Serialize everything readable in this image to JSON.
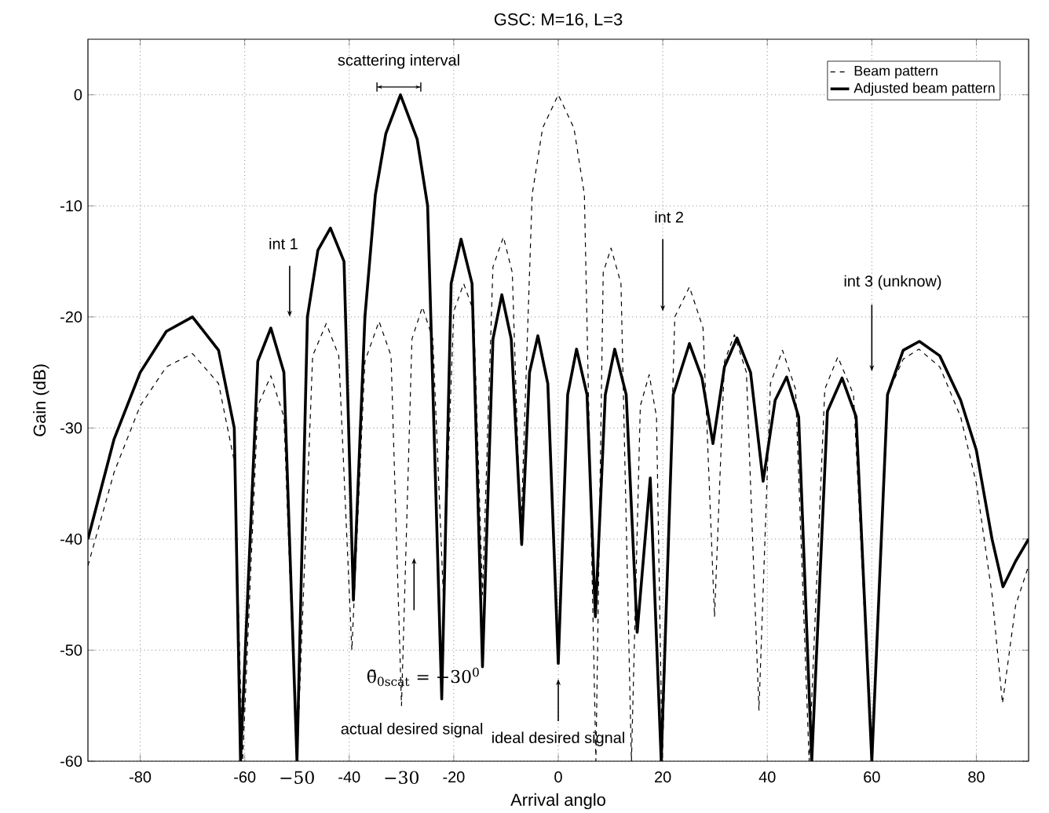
{
  "chart_data": {
    "type": "line",
    "title": "GSC: M=16, L=3",
    "xlabel": "Arrival anglo",
    "ylabel": "Gain (dB)",
    "xlim": [
      -90,
      90
    ],
    "ylim": [
      -60,
      5
    ],
    "xticks": [
      -80,
      -60,
      -40,
      -20,
      0,
      20,
      40,
      60,
      80
    ],
    "yticks": [
      -60,
      -50,
      -40,
      -30,
      -20,
      -10,
      0
    ],
    "grid": true,
    "legend": "top right",
    "marker": "none",
    "series": [
      {
        "name": "Beam pattern",
        "color": "#000000",
        "line_style": "dashed",
        "x": [
          -90,
          -85,
          -80,
          -75,
          -70,
          -65,
          -62,
          -60.4,
          -57.5,
          -55,
          -52.5,
          -50,
          -47,
          -44.4,
          -42,
          -39.5,
          -37,
          -34.3,
          -32,
          -30,
          -28,
          -26,
          -24,
          -22,
          -20,
          -18.1,
          -16.2,
          -14.5,
          -12.5,
          -10.5,
          -8.8,
          -7.2,
          -5,
          -3,
          0,
          3,
          5,
          7.2,
          8.6,
          10.1,
          12,
          14,
          15.7,
          17.4,
          18.8,
          19.9,
          22.3,
          25.1,
          27.7,
          29.9,
          31.8,
          33.7,
          36,
          38.4,
          40.6,
          42.9,
          45.4,
          48,
          51,
          53.5,
          56.5,
          60,
          63,
          66,
          69,
          73,
          77,
          80,
          83,
          85,
          87.5,
          90
        ],
        "values": [
          -42.4,
          -34,
          -28,
          -24.5,
          -23.3,
          -26,
          -33,
          -60,
          -28,
          -25.3,
          -29,
          -60,
          -23.5,
          -20.6,
          -23.5,
          -50,
          -24,
          -20.4,
          -23.5,
          -55,
          -22,
          -19.1,
          -22,
          -45,
          -19.5,
          -17,
          -19.5,
          -45,
          -15.5,
          -12.8,
          -16,
          -40,
          -9,
          -3,
          0,
          -3,
          -9,
          -60,
          -16,
          -13.8,
          -17,
          -60,
          -28,
          -25.2,
          -29,
          -60,
          -20,
          -17.3,
          -21,
          -47,
          -24,
          -21.6,
          -25,
          -55.4,
          -26,
          -23,
          -26.5,
          -60,
          -26.5,
          -23.6,
          -27,
          -60,
          -27,
          -23.8,
          -22.9,
          -24.5,
          -29,
          -35,
          -45,
          -54.8,
          -46,
          -42.4
        ]
      },
      {
        "name": "Adjusted beam pattern",
        "color": "#000000",
        "line_style": "solid",
        "x": [
          -90,
          -85,
          -80,
          -75,
          -70,
          -65,
          -62,
          -60.8,
          -57.5,
          -55,
          -52.5,
          -50,
          -48,
          -46,
          -43.6,
          -41,
          -39.2,
          -37,
          -35,
          -33,
          -30.2,
          -27,
          -25,
          -22.3,
          -20.5,
          -18.6,
          -16.5,
          -14.5,
          -12.5,
          -10.8,
          -9,
          -7,
          -5.5,
          -3.9,
          -2,
          0,
          1.8,
          3.5,
          5.5,
          7.1,
          9,
          10.8,
          13,
          15.1,
          17.6,
          19.7,
          22,
          25.1,
          27.5,
          29.6,
          31.8,
          34.2,
          36.8,
          39.2,
          41.5,
          43.7,
          46,
          48.5,
          51.5,
          54.3,
          57,
          60,
          63,
          66,
          69.1,
          73,
          77,
          80,
          83,
          85.1,
          87.5,
          90
        ],
        "values": [
          -40,
          -31,
          -25,
          -21.3,
          -20,
          -23,
          -30,
          -60,
          -24,
          -21,
          -25,
          -60,
          -20,
          -14,
          -12,
          -15,
          -45.5,
          -20,
          -9,
          -3.5,
          0,
          -4,
          -10,
          -54.4,
          -17,
          -13,
          -17,
          -51.5,
          -22,
          -18,
          -22,
          -40.5,
          -25,
          -21.7,
          -26,
          -51.2,
          -27,
          -22.9,
          -27,
          -47,
          -27,
          -22.9,
          -27,
          -48.4,
          -34.5,
          -60,
          -27,
          -22.4,
          -25.5,
          -31.4,
          -24.5,
          -21.9,
          -25,
          -34.8,
          -27.5,
          -25.4,
          -29,
          -60,
          -28.5,
          -25.5,
          -29,
          -60,
          -27,
          -23,
          -22.2,
          -23.5,
          -27.5,
          -32,
          -40,
          -44.3,
          -42,
          -40
        ]
      }
    ],
    "annotations": [
      "scattering interval",
      "int 1",
      "int 2",
      "int 3 (unknow)",
      "actual desired signal",
      "θ̄$_{0scat}$ = −30$^{0}$",
      "ideal desired signal",
      "−50",
      "−30"
    ]
  }
}
